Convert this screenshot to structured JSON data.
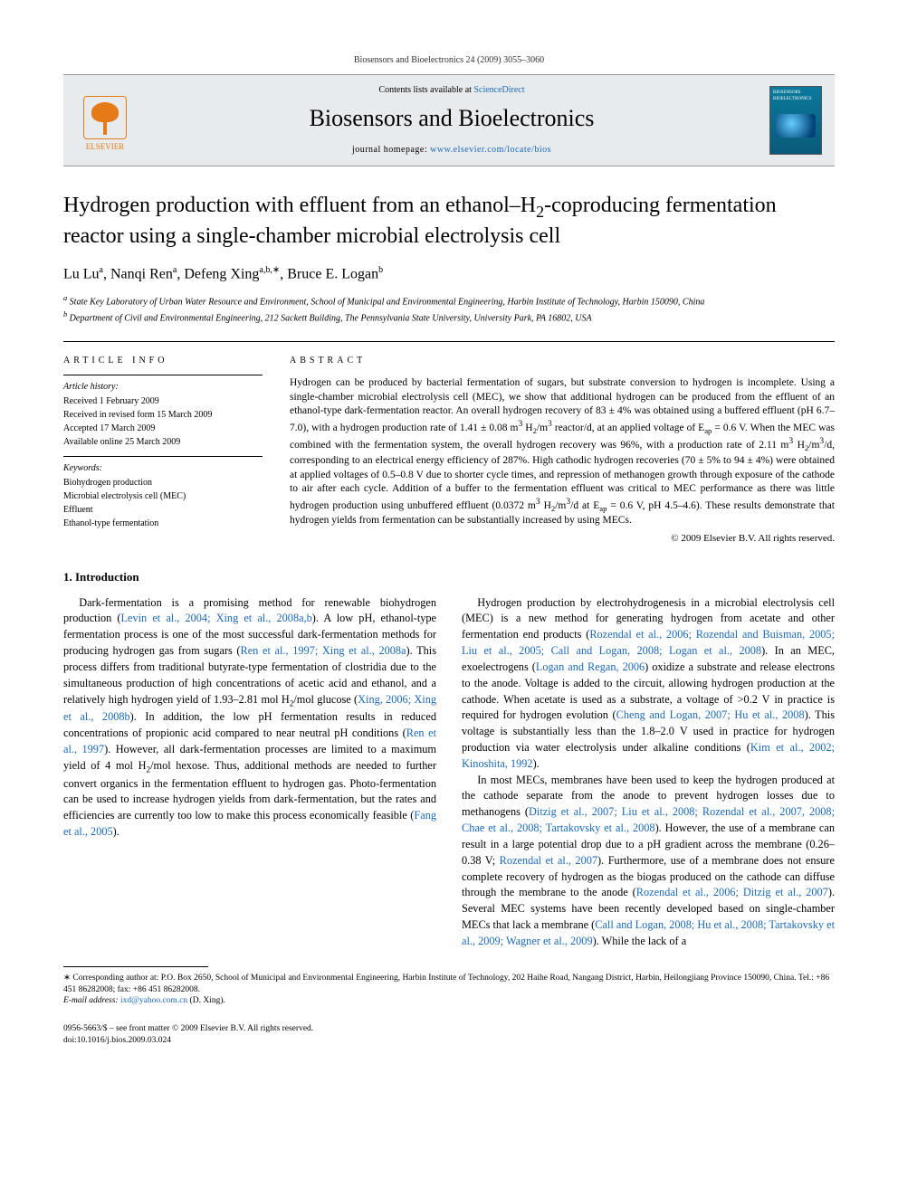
{
  "running_header": "Biosensors and Bioelectronics 24 (2009) 3055–3060",
  "banner": {
    "publisher_name": "ELSEVIER",
    "contents_prefix": "Contents lists available at ",
    "contents_link_text": "ScienceDirect",
    "journal_title": "Biosensors and Bioelectronics",
    "homepage_prefix": "journal homepage: ",
    "homepage_url_text": "www.elsevier.com/locate/bios",
    "cover_label": "BIOSENSORS\nBIOELECTRONICS"
  },
  "article": {
    "title_html": "Hydrogen production with effluent from an ethanol–H<sub>2</sub>-coproducing fermentation reactor using a single-chamber microbial electrolysis cell",
    "authors_html": "Lu Lu<sup>a</sup>, Nanqi Ren<sup>a</sup>, Defeng Xing<sup>a,b,∗</sup>, Bruce E. Logan<sup>b</sup>",
    "affiliations": {
      "a": "State Key Laboratory of Urban Water Resource and Environment, School of Municipal and Environmental Engineering, Harbin Institute of Technology, Harbin 150090, China",
      "b": "Department of Civil and Environmental Engineering, 212 Sackett Building, The Pennsylvania State University, University Park, PA 16802, USA"
    }
  },
  "article_info": {
    "heading": "article info",
    "history_label": "Article history:",
    "history": [
      "Received 1 February 2009",
      "Received in revised form 15 March 2009",
      "Accepted 17 March 2009",
      "Available online 25 March 2009"
    ],
    "keywords_label": "Keywords:",
    "keywords": [
      "Biohydrogen production",
      "Microbial electrolysis cell (MEC)",
      "Effluent",
      "Ethanol-type fermentation"
    ]
  },
  "abstract": {
    "heading": "abstract",
    "text_html": "Hydrogen can be produced by bacterial fermentation of sugars, but substrate conversion to hydrogen is incomplete. Using a single-chamber microbial electrolysis cell (MEC), we show that additional hydrogen can be produced from the effluent of an ethanol-type dark-fermentation reactor. An overall hydrogen recovery of 83 ± 4% was obtained using a buffered effluent (pH 6.7–7.0), with a hydrogen production rate of 1.41 ± 0.08 m<sup>3</sup> H<sub>2</sub>/m<sup>3</sup> reactor/d, at an applied voltage of E<sub>ap</sub> = 0.6 V. When the MEC was combined with the fermentation system, the overall hydrogen recovery was 96%, with a production rate of 2.11 m<sup>3</sup> H<sub>2</sub>/m<sup>3</sup>/d, corresponding to an electrical energy efficiency of 287%. High cathodic hydrogen recoveries (70 ± 5% to 94 ± 4%) were obtained at applied voltages of 0.5–0.8 V due to shorter cycle times, and repression of methanogen growth through exposure of the cathode to air after each cycle. Addition of a buffer to the fermentation effluent was critical to MEC performance as there was little hydrogen production using unbuffered effluent (0.0372 m<sup>3</sup> H<sub>2</sub>/m<sup>3</sup>/d at E<sub>ap</sub> = 0.6 V, pH 4.5–4.6). These results demonstrate that hydrogen yields from fermentation can be substantially increased by using MECs.",
    "copyright": "© 2009 Elsevier B.V. All rights reserved."
  },
  "section1": {
    "heading": "1.  Introduction",
    "p1_html": "Dark-fermentation is a promising method for renewable biohydrogen production (<span class=\"citation-link\">Levin et al., 2004; Xing et al., 2008a,b</span>). A low pH, ethanol-type fermentation process is one of the most successful dark-fermentation methods for producing hydrogen gas from sugars (<span class=\"citation-link\">Ren et al., 1997; Xing et al., 2008a</span>). This process differs from traditional butyrate-type fermentation of clostridia due to the simultaneous production of high concentrations of acetic acid and ethanol, and a relatively high hydrogen yield of 1.93–2.81 mol H<sub>2</sub>/mol glucose (<span class=\"citation-link\">Xing, 2006; Xing et al., 2008b</span>). In addition, the low pH fermentation results in reduced concentrations of propionic acid compared to near neutral pH conditions (<span class=\"citation-link\">Ren et al., 1997</span>). However, all dark-fermentation processes are limited to a maximum yield of 4 mol H<sub>2</sub>/mol hexose. Thus, additional methods are needed to further convert organics in the fermentation effluent to hydrogen gas. Photo-fermentation can be used to increase hydrogen yields from dark-fermentation, but the rates and efficiencies are currently too low to make this process economically feasible (<span class=\"citation-link\">Fang et al., 2005</span>).",
    "p2_html": "Hydrogen production by electrohydrogenesis in a microbial electrolysis cell (MEC) is a new method for generating hydrogen from acetate and other fermentation end products (<span class=\"citation-link\">Rozendal et al., 2006; Rozendal and Buisman, 2005; Liu et al., 2005; Call and Logan, 2008; Logan et al., 2008</span>). In an MEC, exoelectrogens (<span class=\"citation-link\">Logan and Regan, 2006</span>) oxidize a substrate and release electrons to the anode. Voltage is added to the circuit, allowing hydrogen production at the cathode. When acetate is used as a substrate, a voltage of >0.2 V in practice is required for hydrogen evolution (<span class=\"citation-link\">Cheng and Logan, 2007; Hu et al., 2008</span>). This voltage is substantially less than the 1.8–2.0 V used in practice for hydrogen production via water electrolysis under alkaline conditions (<span class=\"citation-link\">Kim et al., 2002; Kinoshita, 1992</span>).",
    "p3_html": "In most MECs, membranes have been used to keep the hydrogen produced at the cathode separate from the anode to prevent hydrogen losses due to methanogens (<span class=\"citation-link\">Ditzig et al., 2007; Liu et al., 2008; Rozendal et al., 2007, 2008; Chae et al., 2008; Tartakovsky et al., 2008</span>). However, the use of a membrane can result in a large potential drop due to a pH gradient across the membrane (0.26–0.38 V; <span class=\"citation-link\">Rozendal et al., 2007</span>). Furthermore, use of a membrane does not ensure complete recovery of hydrogen as the biogas produced on the cathode can diffuse through the membrane to the anode (<span class=\"citation-link\">Rozendal et al., 2006; Ditzig et al., 2007</span>). Several MEC systems have been recently developed based on single-chamber MECs that lack a membrane (<span class=\"citation-link\">Call and Logan, 2008; Hu et al., 2008; Tartakovsky et al., 2009; Wagner et al., 2009</span>). While the lack of a"
  },
  "footnotes": {
    "corresponding": "∗ Corresponding author at: P.O. Box 2650, School of Municipal and Environmental Engineering, Harbin Institute of Technology, 202 Haihe Road, Nangang District, Harbin, Heilongjiang Province 150090, China. Tel.: +86 451 86282008; fax: +86 451 86282008.",
    "email_label": "E-mail address: ",
    "email": "ixd@yahoo.com.cn",
    "email_person": " (D. Xing)."
  },
  "page_footer": {
    "line1": "0956-5663/$ – see front matter © 2009 Elsevier B.V. All rights reserved.",
    "line2": "doi:10.1016/j.bios.2009.03.024"
  }
}
